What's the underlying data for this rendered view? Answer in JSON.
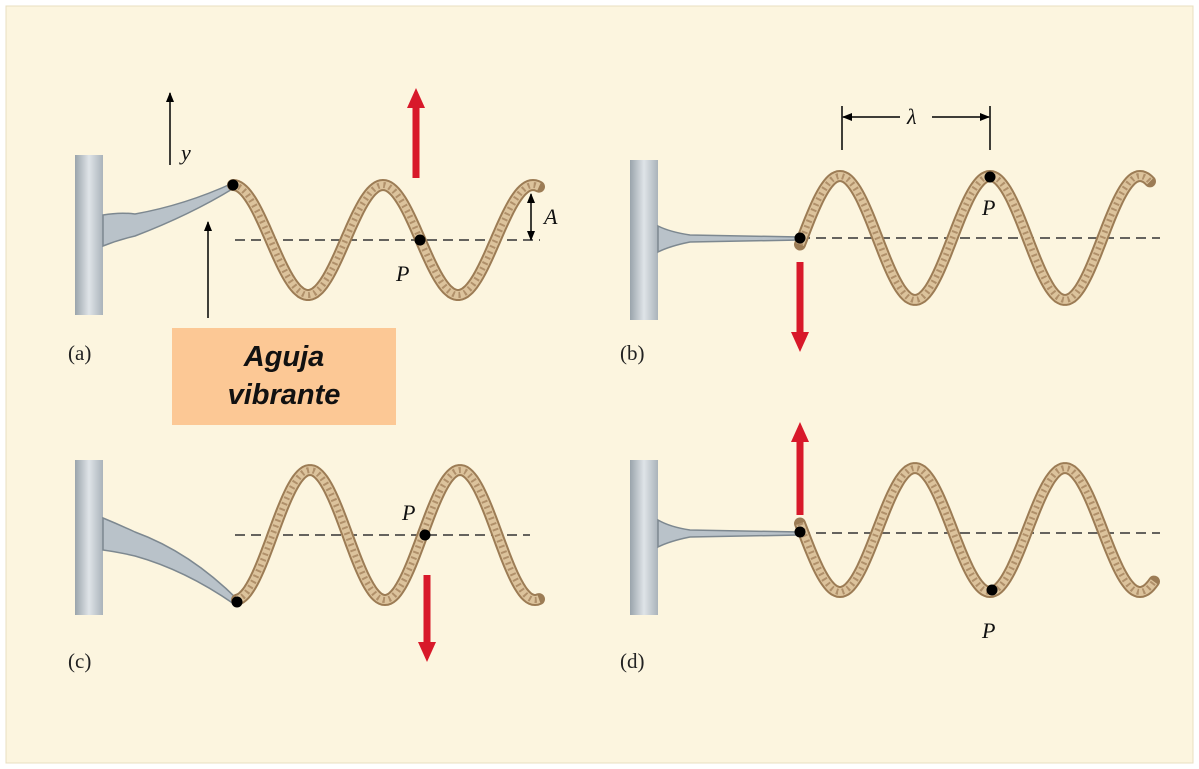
{
  "panels": [
    {
      "label": "(a)",
      "point_label": "P"
    },
    {
      "label": "(b)",
      "point_label": "P"
    },
    {
      "label": "(c)",
      "point_label": "P"
    },
    {
      "label": "(d)",
      "point_label": "P"
    }
  ],
  "axis_label": "y",
  "amplitude_label": "A",
  "wavelength_label": "λ",
  "callout": {
    "lines": [
      "Aguja",
      "vibrante"
    ]
  }
}
